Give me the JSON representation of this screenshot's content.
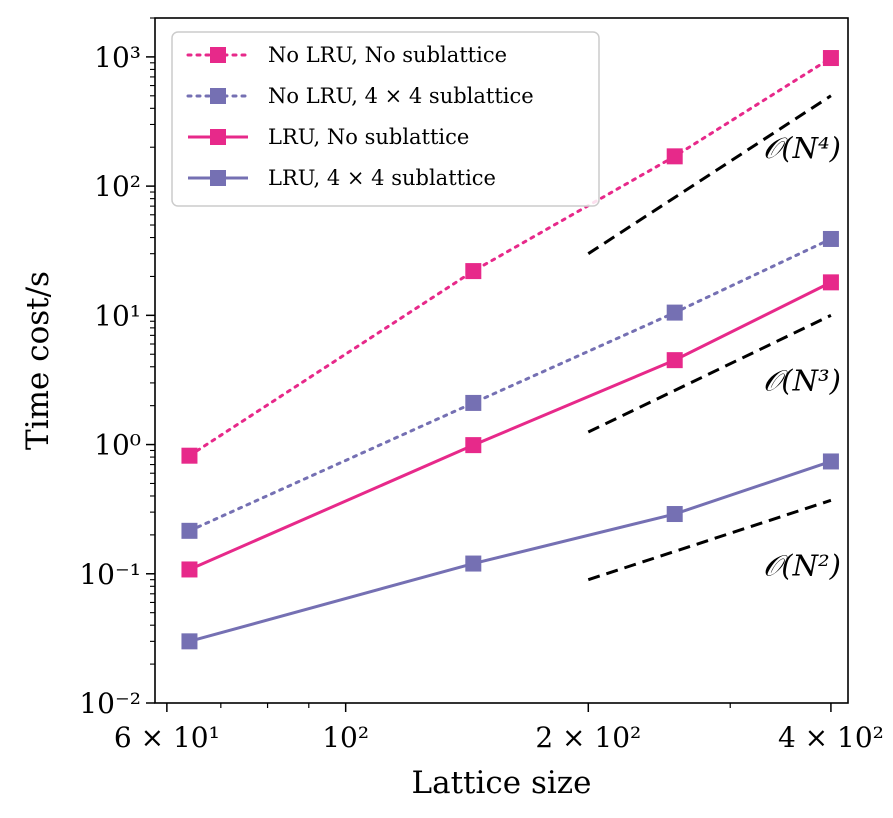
{
  "chart_data": {
    "type": "line",
    "xscale": "log",
    "yscale": "log",
    "xlabel": "Lattice size",
    "ylabel": "Time cost/s",
    "xlim": [
      58,
      420
    ],
    "ylim": [
      0.01,
      2000
    ],
    "xticks": [
      {
        "value": 60,
        "label": "6 × 10¹"
      },
      {
        "value": 100,
        "label": "10²"
      },
      {
        "value": 200,
        "label": "2 × 10²"
      },
      {
        "value": 400,
        "label": "4 × 10²"
      }
    ],
    "yticks": [
      {
        "value": 0.01,
        "label": "10⁻²"
      },
      {
        "value": 0.1,
        "label": "10⁻¹"
      },
      {
        "value": 1,
        "label": "10⁰"
      },
      {
        "value": 10,
        "label": "10¹"
      },
      {
        "value": 100,
        "label": "10²"
      },
      {
        "value": 1000,
        "label": "10³"
      }
    ],
    "grid": false,
    "legend_position": "top-left",
    "x": [
      64,
      144,
      256,
      400
    ],
    "series": [
      {
        "name": "No LRU, No sublattice",
        "color": "#e7298a",
        "style": "dotted",
        "marker": "square",
        "values": [
          0.82,
          22,
          170,
          980
        ]
      },
      {
        "name": "No LRU, 4 × 4 sublattice",
        "color": "#7570b3",
        "style": "dotted",
        "marker": "square",
        "values": [
          0.215,
          2.1,
          10.5,
          39
        ]
      },
      {
        "name": "LRU, No sublattice",
        "color": "#e7298a",
        "style": "solid",
        "marker": "square",
        "values": [
          0.108,
          0.99,
          4.5,
          18
        ]
      },
      {
        "name": "LRU, 4 × 4 sublattice",
        "color": "#7570b3",
        "style": "solid",
        "marker": "square",
        "values": [
          0.03,
          0.12,
          0.29,
          0.74
        ]
      }
    ],
    "reference_lines": [
      {
        "label": "𝒪(N⁴)",
        "x": [
          200,
          400
        ],
        "y": [
          30,
          500
        ]
      },
      {
        "label": "𝒪(N³)",
        "x": [
          200,
          400
        ],
        "y": [
          1.25,
          10
        ]
      },
      {
        "label": "𝒪(N²)",
        "x": [
          200,
          400
        ],
        "y": [
          0.09,
          0.37
        ]
      }
    ]
  }
}
